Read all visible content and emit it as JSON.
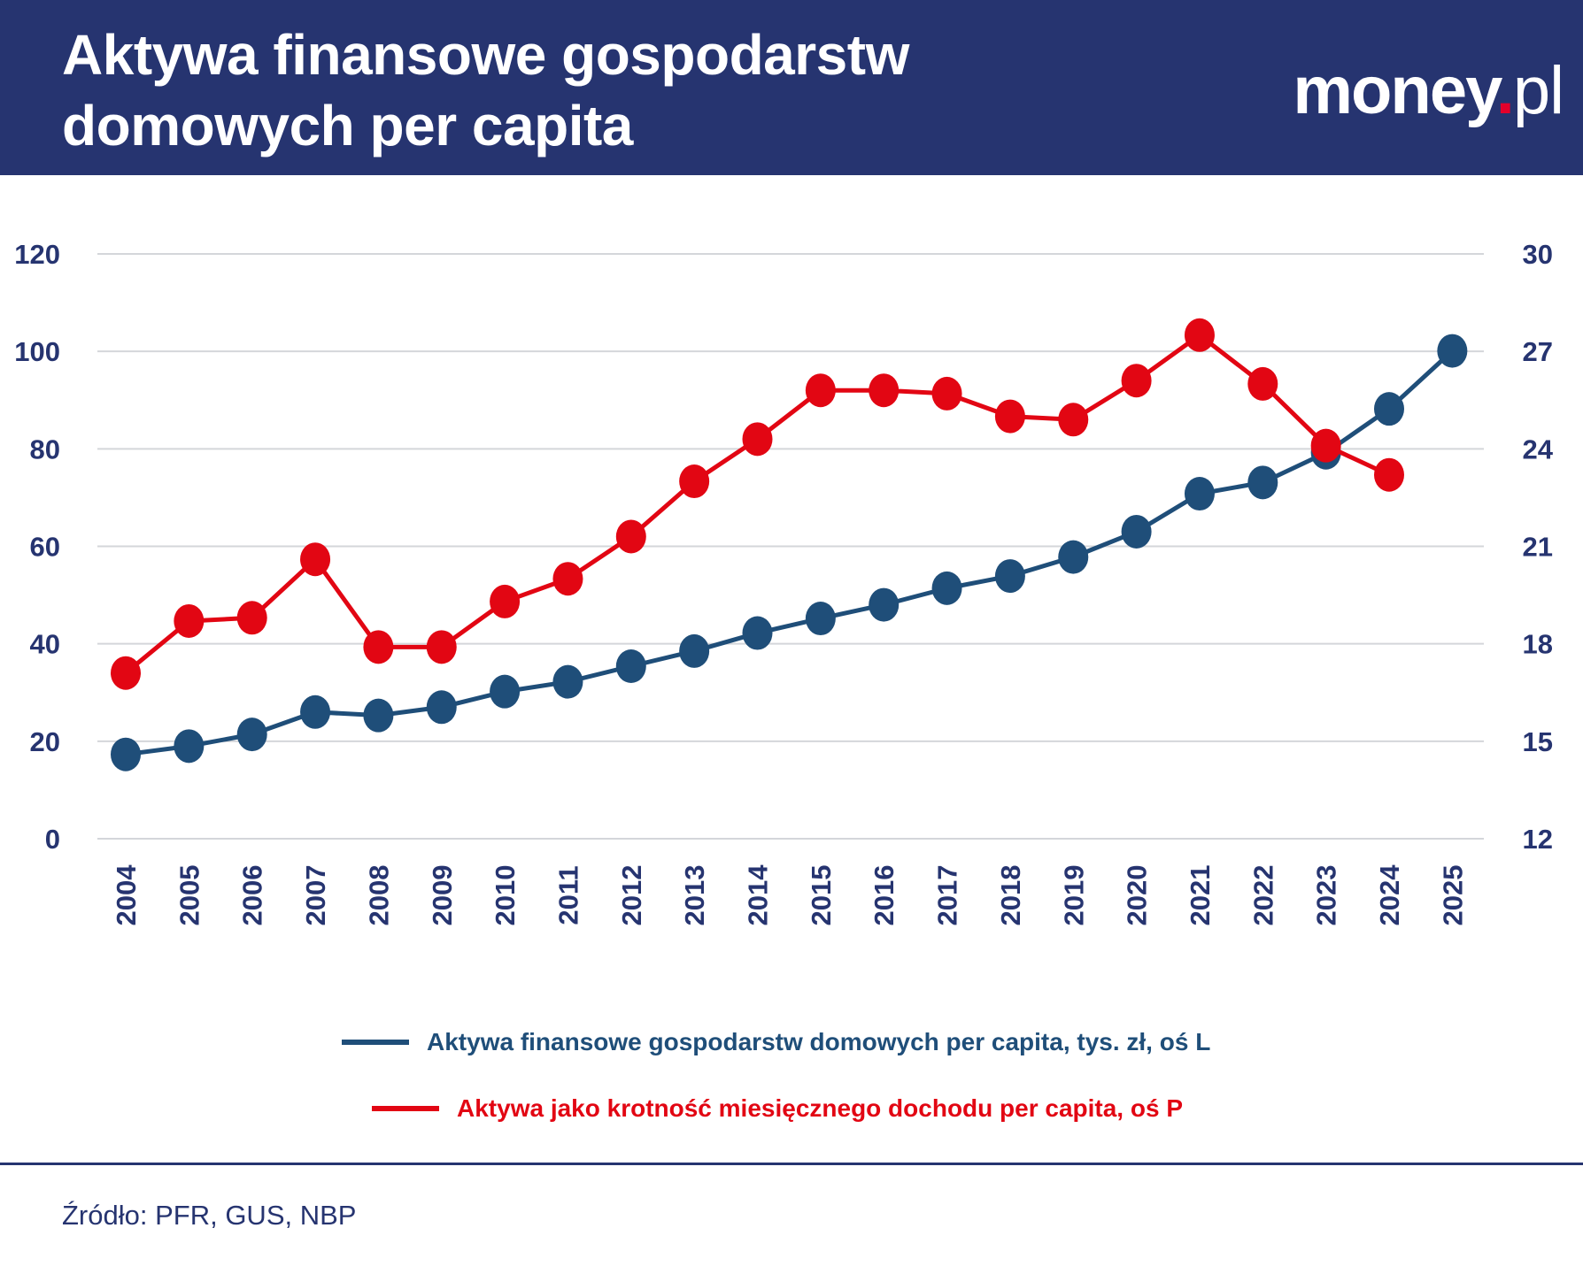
{
  "title_lines": [
    "Aktywa finansowe gospodarstw",
    "domowych per capita"
  ],
  "logo": {
    "name": "money",
    "dot": ".",
    "tld": "pl"
  },
  "chart_data": {
    "type": "line",
    "title": "Aktywa finansowe gospodarstw domowych per capita",
    "categories": [
      "2004",
      "2005",
      "2006",
      "2007",
      "2008",
      "2009",
      "2010",
      "2011",
      "2012",
      "2013",
      "2014",
      "2015",
      "2016",
      "2017",
      "2018",
      "2019",
      "2020",
      "2021",
      "2022",
      "2023",
      "2024",
      "2025"
    ],
    "y_left": {
      "range": [
        0,
        120
      ],
      "ticks": [
        0,
        20,
        40,
        60,
        80,
        100,
        120
      ]
    },
    "y_right": {
      "range": [
        12,
        30
      ],
      "ticks": [
        12,
        15,
        18,
        21,
        24,
        27,
        30
      ]
    },
    "grid": true,
    "legend_position": "bottom",
    "series": [
      {
        "name": "Aktywa finansowe gospodarstw domowych per capita, tys. zł, oś L",
        "axis": "left",
        "color": "#1f4e79",
        "values": [
          17.3,
          19,
          21.4,
          26,
          25.3,
          27,
          30.2,
          32.2,
          35.4,
          38.5,
          42.2,
          45.2,
          48,
          51.4,
          53.9,
          57.8,
          63,
          70.8,
          73.1,
          79.2,
          88.2,
          100.1
        ]
      },
      {
        "name": "Aktywa jako krotność miesięcznego dochodu per capita, oś P",
        "axis": "right",
        "color": "#e20613",
        "values": [
          17.1,
          18.7,
          18.8,
          20.6,
          17.9,
          17.9,
          19.3,
          20,
          21.3,
          23,
          24.3,
          25.8,
          25.8,
          25.7,
          25,
          24.9,
          26.1,
          27.5,
          26,
          24.1,
          23.2,
          null
        ]
      }
    ]
  },
  "source": "Źródło: PFR, GUS, NBP"
}
